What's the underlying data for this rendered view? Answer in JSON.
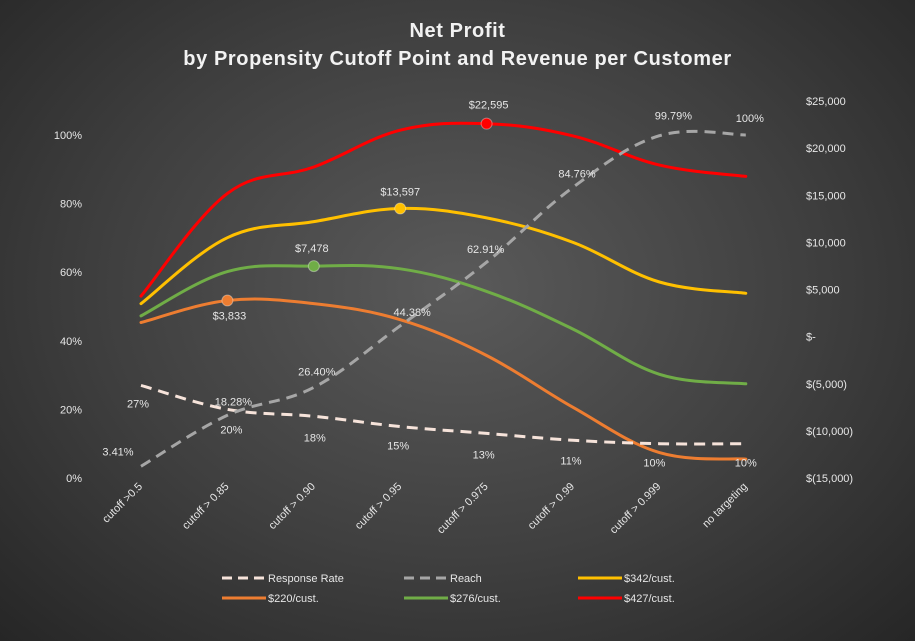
{
  "chart_data": {
    "type": "line",
    "title": [
      "Net Profit",
      "by Propensity Cutoff Point and Revenue per Customer"
    ],
    "categories": [
      "cutoff >0.5",
      "cutoff > 0.85",
      "cutoff > 0.90",
      "cutoff > 0.95",
      "cutoff > 0.975",
      "cutoff > 0.99",
      "cutoff > 0.999",
      "no targeting"
    ],
    "left_axis": {
      "ylim": [
        0,
        100
      ],
      "ticks": [
        0,
        20,
        40,
        60,
        80,
        100
      ],
      "tick_labels": [
        "0%",
        "20%",
        "40%",
        "60%",
        "80%",
        "100%"
      ]
    },
    "right_axis": {
      "ylim": [
        -15000,
        25000
      ],
      "ticks": [
        -15000,
        -10000,
        -5000,
        0,
        5000,
        10000,
        15000,
        20000,
        25000
      ],
      "tick_labels": [
        "$(15,000)",
        "$(10,000)",
        "$(5,000)",
        "$-",
        "$5,000",
        "$10,000",
        "$15,000",
        "$20,000",
        "$25,000"
      ]
    },
    "series": [
      {
        "name": "Response Rate",
        "axis": "left",
        "color": "#f6e3da",
        "dashed": true,
        "values": [
          27,
          20,
          18,
          15,
          13,
          11,
          10,
          10
        ],
        "labels": [
          "27%",
          "20%",
          "18%",
          "15%",
          "13%",
          "11%",
          "10%",
          "10%"
        ]
      },
      {
        "name": "Reach",
        "axis": "left",
        "color": "#a6a6a6",
        "dashed": true,
        "values": [
          3.41,
          18.28,
          26.4,
          44.38,
          62.91,
          84.76,
          99.79,
          100
        ],
        "labels": [
          "3.41%",
          "18.28%",
          "26.40%",
          "44.38%",
          "62.91%",
          "84.76%",
          "99.79%",
          "100%"
        ]
      },
      {
        "name": "$342/cust.",
        "axis": "right",
        "color": "#ffc000",
        "values": [
          3500,
          10500,
          12200,
          13597,
          12600,
          10000,
          5800,
          4600
        ],
        "peak_index": 3,
        "peak_label": "$13,597"
      },
      {
        "name": "$220/cust.",
        "axis": "right",
        "color": "#ed7d31",
        "values": [
          1500,
          3833,
          3500,
          1800,
          -2000,
          -7500,
          -12300,
          -13000
        ],
        "peak_index": 1,
        "peak_label": "$3,833"
      },
      {
        "name": "$276/cust.",
        "axis": "right",
        "color": "#70ad47",
        "values": [
          2200,
          6900,
          7478,
          7200,
          4800,
          800,
          -4000,
          -5000
        ],
        "peak_index": 2,
        "peak_label": "$7,478"
      },
      {
        "name": "$427/cust.",
        "axis": "right",
        "color": "#ff0000",
        "values": [
          4300,
          15200,
          18000,
          21900,
          22595,
          21300,
          18200,
          17000
        ],
        "peak_index": 4,
        "peak_label": "$22,595"
      }
    ],
    "legend_order": [
      "Response Rate",
      "Reach",
      "$342/cust.",
      "$220/cust.",
      "$276/cust.",
      "$427/cust."
    ],
    "legend_position": "bottom",
    "grid": false
  }
}
